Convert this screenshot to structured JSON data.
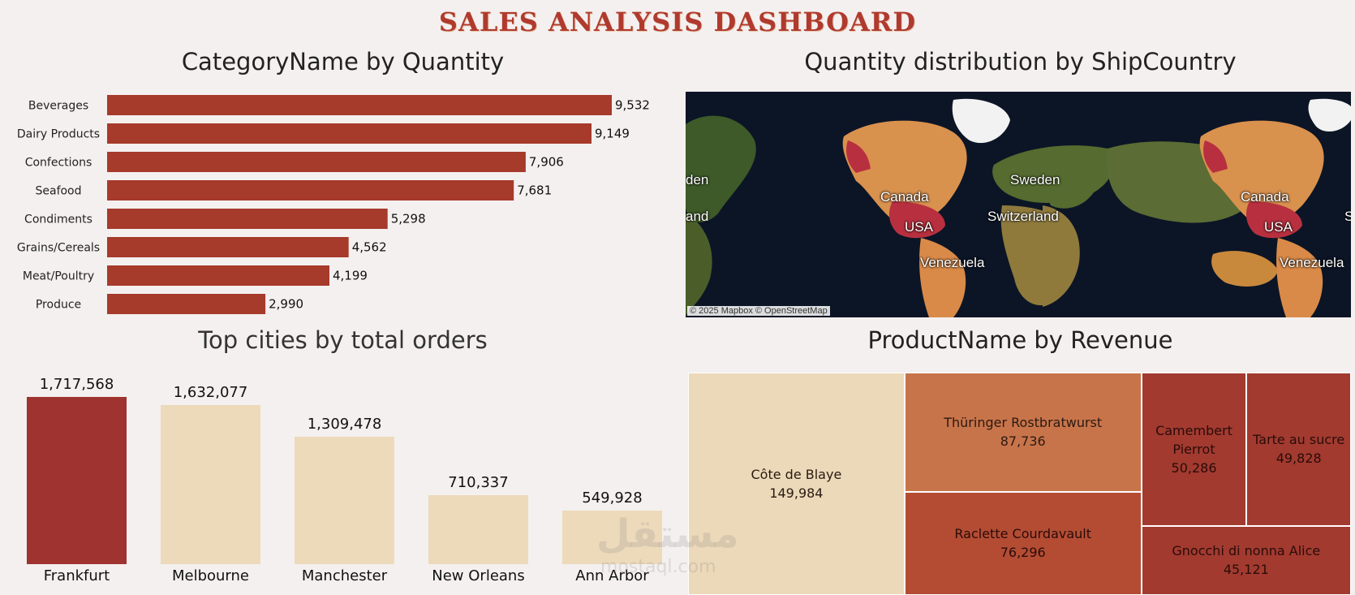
{
  "dashboard": {
    "title": "SALES ANALYSIS DASHBOARD"
  },
  "panels": {
    "category": {
      "title": "CategoryName by Quantity"
    },
    "map": {
      "title": "Quantity distribution by ShipCountry",
      "attribution": "© 2025 Mapbox © OpenStreetMap"
    },
    "cities": {
      "title": "Top cities by total orders"
    },
    "products": {
      "title": "ProductName by Revenue"
    }
  },
  "map_labels": [
    "den",
    "Canada",
    "Sweden",
    "Canada",
    "and",
    "USA",
    "Switzerland",
    "USA",
    "S",
    "Venezuela",
    "Venezuela"
  ],
  "colors": {
    "bar": "#a63a2b",
    "city_highlight": "#9e3330",
    "city_normal": "#eddabb",
    "title": "#b03a2e",
    "tm_light": "#ecd9b9",
    "tm_mid": "#c8744a",
    "tm_orange": "#b44c34",
    "tm_dark": "#a23a30"
  },
  "watermark": {
    "main": "مستقل",
    "sub": "mostaql.com"
  },
  "chart_data": [
    {
      "type": "bar",
      "orientation": "horizontal",
      "title": "CategoryName by Quantity",
      "categories": [
        "Beverages",
        "Dairy Products",
        "Confections",
        "Seafood",
        "Condiments",
        "Grains/Cereals",
        "Meat/Poultry",
        "Produce"
      ],
      "values": [
        9532,
        9149,
        7906,
        7681,
        5298,
        4562,
        4199,
        2990
      ],
      "value_labels": [
        "9,532",
        "9,149",
        "7,906",
        "7,681",
        "5,298",
        "4,562",
        "4,199",
        "2,990"
      ],
      "xlim": [
        0,
        9532
      ]
    },
    {
      "type": "bar",
      "title": "Top cities by total orders",
      "categories": [
        "Frankfurt",
        "Melbourne",
        "Manchester",
        "New Orleans",
        "Ann Arbor"
      ],
      "values": [
        1717568,
        1632077,
        1309478,
        710337,
        549928
      ],
      "value_labels": [
        "1,717,568",
        "1,632,077",
        "1,309,478",
        "710,337",
        "549,928"
      ],
      "highlight": "Frankfurt",
      "ylim": [
        0,
        1717568
      ]
    },
    {
      "type": "treemap",
      "title": "ProductName by Revenue",
      "items": [
        {
          "name": "Côte de Blaye",
          "value": 149984,
          "label": "149,984"
        },
        {
          "name": "Thüringer Rostbratwurst",
          "value": 87736,
          "label": "87,736"
        },
        {
          "name": "Raclette Courdavault",
          "value": 76296,
          "label": "76,296"
        },
        {
          "name": "Camembert Pierrot",
          "value": 50286,
          "label": "50,286"
        },
        {
          "name": "Tarte au sucre",
          "value": 49828,
          "label": "49,828"
        },
        {
          "name": "Gnocchi di nonna Alice",
          "value": 45121,
          "label": "45,121"
        }
      ]
    }
  ]
}
